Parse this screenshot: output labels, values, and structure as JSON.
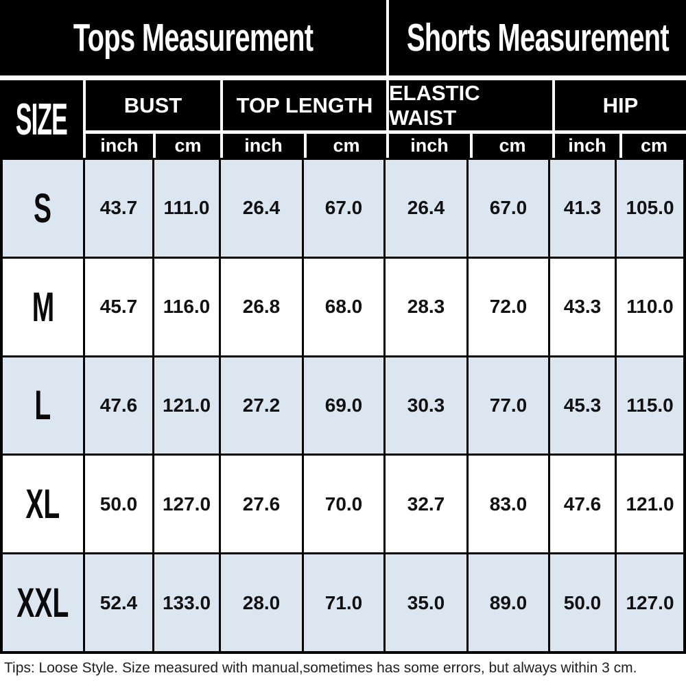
{
  "titles": {
    "tops": "Tops Measurement",
    "shorts": "Shorts Measurement"
  },
  "table": {
    "size_header": "SIZE",
    "groups": [
      {
        "label": "BUST"
      },
      {
        "label": "TOP LENGTH"
      },
      {
        "label": "ELASTIC WAIST"
      },
      {
        "label": "HIP"
      }
    ],
    "units": [
      "inch",
      "cm",
      "inch",
      "cm",
      "inch",
      "cm",
      "inch",
      "cm"
    ],
    "rows": [
      {
        "size": "S",
        "values": [
          "43.7",
          "111.0",
          "26.4",
          "67.0",
          "26.4",
          "67.0",
          "41.3",
          "105.0"
        ]
      },
      {
        "size": "M",
        "values": [
          "45.7",
          "116.0",
          "26.8",
          "68.0",
          "28.3",
          "72.0",
          "43.3",
          "110.0"
        ]
      },
      {
        "size": "L",
        "values": [
          "47.6",
          "121.0",
          "27.2",
          "69.0",
          "30.3",
          "77.0",
          "45.3",
          "115.0"
        ]
      },
      {
        "size": "XL",
        "values": [
          "50.0",
          "127.0",
          "27.6",
          "70.0",
          "32.7",
          "83.0",
          "47.6",
          "121.0"
        ]
      },
      {
        "size": "XXL",
        "values": [
          "52.4",
          "133.0",
          "28.0",
          "71.0",
          "35.0",
          "89.0",
          "50.0",
          "127.0"
        ]
      }
    ]
  },
  "tip": "Tips: Loose Style. Size measured with manual,sometimes has some errors, but always within 3 cm.",
  "colors": {
    "header_bg": "#000000",
    "header_text": "#ffffff",
    "row_alt": "#dce6f1",
    "row_plain": "#ffffff",
    "border": "#000000"
  },
  "chart_data": {
    "type": "table",
    "sections": [
      {
        "title": "Tops Measurement",
        "groups": [
          "BUST",
          "TOP LENGTH"
        ]
      },
      {
        "title": "Shorts Measurement",
        "groups": [
          "ELASTIC WAIST",
          "HIP"
        ]
      }
    ],
    "columns": [
      "SIZE",
      "BUST inch",
      "BUST cm",
      "TOP LENGTH inch",
      "TOP LENGTH cm",
      "ELASTIC WAIST inch",
      "ELASTIC WAIST cm",
      "HIP inch",
      "HIP cm"
    ],
    "rows": [
      [
        "S",
        43.7,
        111.0,
        26.4,
        67.0,
        26.4,
        67.0,
        41.3,
        105.0
      ],
      [
        "M",
        45.7,
        116.0,
        26.8,
        68.0,
        28.3,
        72.0,
        43.3,
        110.0
      ],
      [
        "L",
        47.6,
        121.0,
        27.2,
        69.0,
        30.3,
        77.0,
        45.3,
        115.0
      ],
      [
        "XL",
        50.0,
        127.0,
        27.6,
        70.0,
        32.7,
        83.0,
        47.6,
        121.0
      ],
      [
        "XXL",
        52.4,
        133.0,
        28.0,
        71.0,
        35.0,
        89.0,
        50.0,
        127.0
      ]
    ],
    "footnote": "Tips: Loose Style. Size measured with manual,sometimes has some errors, but always within 3 cm."
  }
}
